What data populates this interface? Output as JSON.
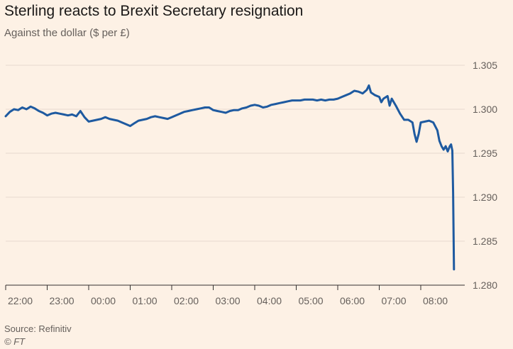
{
  "title": "Sterling reacts to Brexit Secretary resignation",
  "subtitle": "Against the dollar ($ per £)",
  "source": "Source: Refinitiv",
  "credit": "© FT",
  "colors": {
    "background": "#fdf1e5",
    "line": "#1e5aa0",
    "grid": "#e6d9ce",
    "text": "#66605c"
  },
  "chart_data": {
    "type": "line",
    "title": "Sterling reacts to Brexit Secretary resignation",
    "subtitle": "Against the dollar ($ per £)",
    "xlabel": "",
    "ylabel": "",
    "ylim": [
      1.28,
      1.305
    ],
    "y_ticks": [
      "1.280",
      "1.285",
      "1.290",
      "1.295",
      "1.300",
      "1.305"
    ],
    "y_axis_side": "right",
    "x_ticks": [
      "22:00",
      "23:00",
      "00:00",
      "01:00",
      "02:00",
      "03:00",
      "04:00",
      "05:00",
      "06:00",
      "07:00",
      "08:00"
    ],
    "xlim_hours": [
      0,
      11
    ],
    "grid": "horizontal",
    "series": [
      {
        "name": "",
        "points": [
          [
            0.0,
            1.2992
          ],
          [
            0.1,
            1.2997
          ],
          [
            0.2,
            1.3
          ],
          [
            0.3,
            1.2999
          ],
          [
            0.4,
            1.3002
          ],
          [
            0.5,
            1.3
          ],
          [
            0.6,
            1.3003
          ],
          [
            0.7,
            1.3001
          ],
          [
            0.8,
            1.2998
          ],
          [
            0.9,
            1.2996
          ],
          [
            1.0,
            1.2993
          ],
          [
            1.1,
            1.2995
          ],
          [
            1.2,
            1.2996
          ],
          [
            1.3,
            1.2995
          ],
          [
            1.4,
            1.2994
          ],
          [
            1.5,
            1.2993
          ],
          [
            1.6,
            1.2994
          ],
          [
            1.7,
            1.2992
          ],
          [
            1.8,
            1.2998
          ],
          [
            1.9,
            1.2991
          ],
          [
            2.0,
            1.2986
          ],
          [
            2.1,
            1.2987
          ],
          [
            2.2,
            1.2988
          ],
          [
            2.3,
            1.2989
          ],
          [
            2.4,
            1.2991
          ],
          [
            2.5,
            1.2989
          ],
          [
            2.6,
            1.2988
          ],
          [
            2.7,
            1.2987
          ],
          [
            2.8,
            1.2985
          ],
          [
            2.9,
            1.2983
          ],
          [
            3.0,
            1.2981
          ],
          [
            3.1,
            1.2984
          ],
          [
            3.2,
            1.2987
          ],
          [
            3.3,
            1.2988
          ],
          [
            3.4,
            1.2989
          ],
          [
            3.5,
            1.2991
          ],
          [
            3.6,
            1.2992
          ],
          [
            3.7,
            1.2991
          ],
          [
            3.8,
            1.299
          ],
          [
            3.9,
            1.2989
          ],
          [
            4.0,
            1.2991
          ],
          [
            4.1,
            1.2993
          ],
          [
            4.2,
            1.2995
          ],
          [
            4.3,
            1.2997
          ],
          [
            4.4,
            1.2998
          ],
          [
            4.5,
            1.2999
          ],
          [
            4.6,
            1.3
          ],
          [
            4.7,
            1.3001
          ],
          [
            4.8,
            1.3002
          ],
          [
            4.9,
            1.3002
          ],
          [
            5.0,
            1.2999
          ],
          [
            5.1,
            1.2998
          ],
          [
            5.2,
            1.2997
          ],
          [
            5.3,
            1.2996
          ],
          [
            5.4,
            1.2998
          ],
          [
            5.5,
            1.2999
          ],
          [
            5.6,
            1.2999
          ],
          [
            5.7,
            1.3001
          ],
          [
            5.8,
            1.3002
          ],
          [
            5.9,
            1.3004
          ],
          [
            6.0,
            1.3005
          ],
          [
            6.1,
            1.3004
          ],
          [
            6.2,
            1.3002
          ],
          [
            6.3,
            1.3003
          ],
          [
            6.4,
            1.3005
          ],
          [
            6.5,
            1.3006
          ],
          [
            6.6,
            1.3007
          ],
          [
            6.7,
            1.3008
          ],
          [
            6.8,
            1.3009
          ],
          [
            6.9,
            1.301
          ],
          [
            7.0,
            1.301
          ],
          [
            7.1,
            1.301
          ],
          [
            7.2,
            1.3011
          ],
          [
            7.3,
            1.3011
          ],
          [
            7.4,
            1.3011
          ],
          [
            7.5,
            1.301
          ],
          [
            7.6,
            1.3011
          ],
          [
            7.7,
            1.301
          ],
          [
            7.8,
            1.3011
          ],
          [
            7.9,
            1.3011
          ],
          [
            8.0,
            1.3012
          ],
          [
            8.1,
            1.3014
          ],
          [
            8.2,
            1.3016
          ],
          [
            8.3,
            1.3018
          ],
          [
            8.4,
            1.3021
          ],
          [
            8.5,
            1.302
          ],
          [
            8.6,
            1.3018
          ],
          [
            8.7,
            1.3022
          ],
          [
            8.75,
            1.3027
          ],
          [
            8.8,
            1.3019
          ],
          [
            8.9,
            1.3016
          ],
          [
            9.0,
            1.3014
          ],
          [
            9.05,
            1.3008
          ],
          [
            9.1,
            1.3012
          ],
          [
            9.2,
            1.3015
          ],
          [
            9.25,
            1.3004
          ],
          [
            9.3,
            1.3012
          ],
          [
            9.4,
            1.3004
          ],
          [
            9.5,
            1.2995
          ],
          [
            9.6,
            1.2988
          ],
          [
            9.7,
            1.2988
          ],
          [
            9.8,
            1.2985
          ],
          [
            9.85,
            1.2972
          ],
          [
            9.9,
            1.2963
          ],
          [
            9.95,
            1.2972
          ],
          [
            10.0,
            1.2985
          ],
          [
            10.1,
            1.2986
          ],
          [
            10.2,
            1.2987
          ],
          [
            10.3,
            1.2985
          ],
          [
            10.4,
            1.2976
          ],
          [
            10.45,
            1.2964
          ],
          [
            10.5,
            1.2958
          ],
          [
            10.55,
            1.2954
          ],
          [
            10.6,
            1.2958
          ],
          [
            10.65,
            1.2952
          ],
          [
            10.7,
            1.2958
          ],
          [
            10.73,
            1.296
          ],
          [
            10.76,
            1.2953
          ],
          [
            10.78,
            1.2905
          ],
          [
            10.8,
            1.2818
          ]
        ]
      }
    ]
  }
}
